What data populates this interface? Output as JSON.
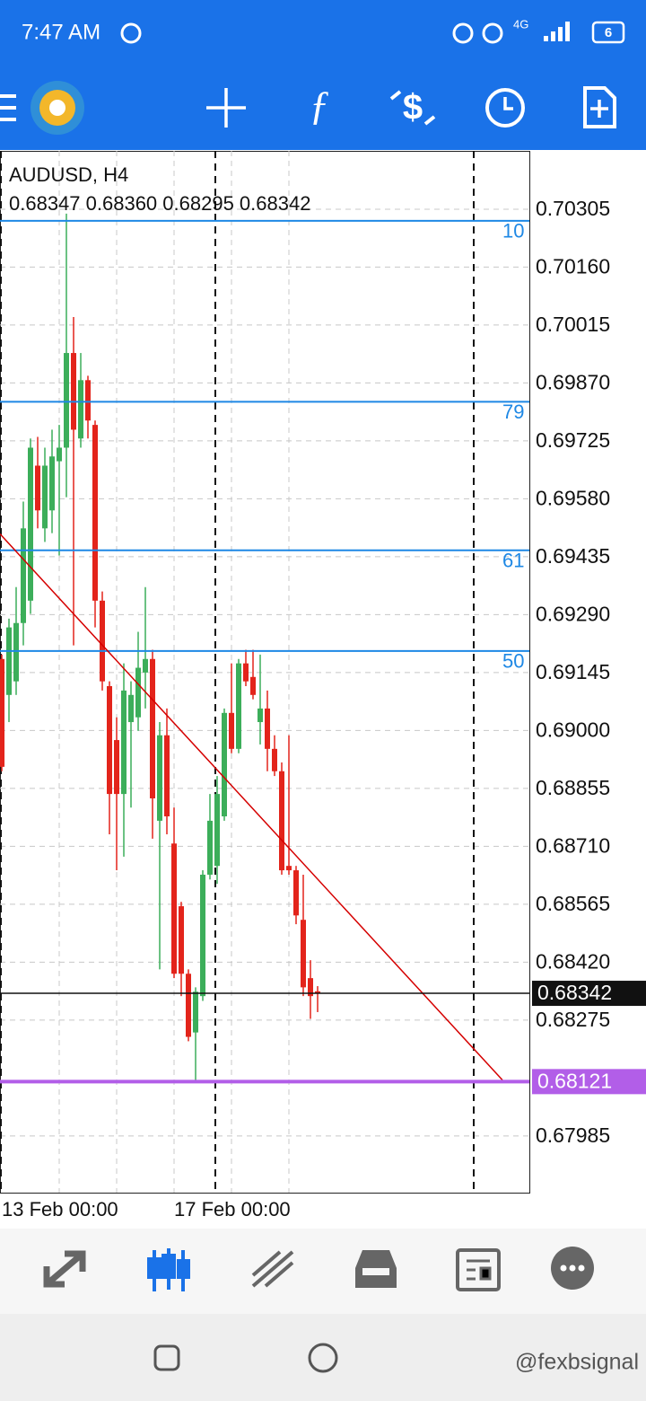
{
  "status_bar": {
    "time": "7:47 AM",
    "network": "4G",
    "battery": "6"
  },
  "chart_data": {
    "type": "candlestick",
    "title": "AUDUSD, H4",
    "ohlc_header": "0.68347 0.68360 0.68295 0.68342",
    "categories": [
      "13 Feb 00:00",
      null,
      null,
      null,
      null,
      null,
      null,
      null,
      null,
      null,
      null,
      null,
      null,
      null,
      null,
      null,
      null,
      null,
      null,
      null,
      null,
      null,
      null,
      null,
      "17 Feb 00:00",
      null,
      null,
      null,
      null,
      null,
      null,
      null,
      null,
      null,
      null,
      null,
      null,
      null,
      null,
      null,
      null,
      null,
      null,
      null,
      null
    ],
    "open": [
      0.69179,
      0.69089,
      0.69123,
      0.69269,
      0.69325,
      0.69663,
      0.69506,
      0.69551,
      0.69674,
      0.69708,
      0.69945,
      0.69731,
      0.69877,
      0.69765,
      0.69325,
      0.69111,
      0.68976,
      0.68841,
      0.69021,
      0.69033,
      0.69145,
      0.69179,
      0.68774,
      0.68988,
      0.68717,
      0.6856,
      0.68391,
      0.68244,
      0.68335,
      0.68639,
      0.68661,
      0.68785,
      0.69044,
      0.68954,
      0.69168,
      0.69134,
      0.69021,
      0.69055,
      0.68954,
      0.68898,
      0.68661,
      0.6865,
      0.68526,
      0.6838,
      0.68347
    ],
    "high": [
      0.6919,
      0.6928,
      0.69359,
      0.69573,
      0.69731,
      0.69735,
      0.69708,
      0.69753,
      0.69765,
      0.70294,
      0.70035,
      0.69945,
      0.69888,
      0.69776,
      0.69348,
      0.69123,
      0.69033,
      0.69168,
      0.69123,
      0.69247,
      0.69359,
      0.69202,
      0.69021,
      0.69055,
      0.68807,
      0.68571,
      0.68402,
      0.68357,
      0.6865,
      0.68841,
      0.68886,
      0.69055,
      0.69168,
      0.69179,
      0.69202,
      0.69202,
      0.6919,
      0.691,
      0.68988,
      0.6892,
      0.68988,
      0.68661,
      0.68639,
      0.68425,
      0.6836
    ],
    "low": [
      0.68898,
      0.69021,
      0.69089,
      0.69213,
      0.69292,
      0.69506,
      0.69472,
      0.69494,
      0.69438,
      0.69584,
      0.69213,
      0.69708,
      0.69731,
      0.69258,
      0.691,
      0.6874,
      0.6865,
      0.68684,
      0.68807,
      0.68999,
      0.69055,
      0.68729,
      0.68402,
      0.6874,
      0.6838,
      0.68335,
      0.68222,
      0.68121,
      0.68323,
      0.68627,
      0.68616,
      0.68774,
      0.68943,
      0.68943,
      0.69111,
      0.69078,
      0.68965,
      0.68898,
      0.68886,
      0.68639,
      0.68639,
      0.68515,
      0.68335,
      0.68278,
      0.68295
    ],
    "close": [
      0.68909,
      0.69258,
      0.69269,
      0.69506,
      0.69708,
      0.69551,
      0.69663,
      0.69686,
      0.69708,
      0.69945,
      0.69753,
      0.69877,
      0.69776,
      0.69325,
      0.69123,
      0.68841,
      0.68841,
      0.691,
      0.69089,
      0.69157,
      0.69179,
      0.6883,
      0.68988,
      0.68785,
      0.68391,
      0.68391,
      0.68233,
      0.68346,
      0.68639,
      0.68774,
      0.68841,
      0.69044,
      0.68954,
      0.69168,
      0.69123,
      0.69089,
      0.69055,
      0.68954,
      0.68898,
      0.6865,
      0.6865,
      0.68537,
      0.68357,
      0.68335,
      0.68342
    ],
    "up_color": "#3cae5a",
    "down_color": "#e3241b",
    "ylim": [
      0.67843,
      0.70451
    ],
    "yticks": [
      0.70305,
      {
        "value": 0.7016,
        "label": "0.70160"
      },
      0.70015,
      {
        "value": 0.6987,
        "label": "0.69870"
      },
      0.69725,
      {
        "value": 0.6958,
        "label": "0.69580"
      },
      0.69435,
      {
        "value": 0.6929,
        "label": "0.69290"
      },
      0.69145,
      {
        "value": 0.69,
        "label": "0.69000"
      },
      0.68855,
      {
        "value": 0.6871,
        "label": "0.68710"
      },
      0.68565,
      {
        "value": 0.6842,
        "label": "0.68420"
      },
      0.68275,
      0.67985
    ],
    "grid": true,
    "fib_levels": [
      {
        "label": "10",
        "price": 0.70276
      },
      {
        "label": "79",
        "price": 0.69823
      },
      {
        "label": "61",
        "price": 0.69451
      },
      {
        "label": "50",
        "price": 0.69199
      }
    ],
    "fib_color": "#1e88e5",
    "trendline": {
      "x": [
        -0.25,
        69.75
      ],
      "y": [
        0.69492,
        0.68125
      ],
      "color": "#d50000"
    },
    "separators": [
      -0.25,
      29.75,
      65.75
    ],
    "bid": {
      "value": 0.68342,
      "label": "0.68342"
    },
    "level": {
      "value": 0.68121,
      "label": "0.68121",
      "color": "#b25ee8"
    }
  },
  "watermark": "@fexbsignal"
}
